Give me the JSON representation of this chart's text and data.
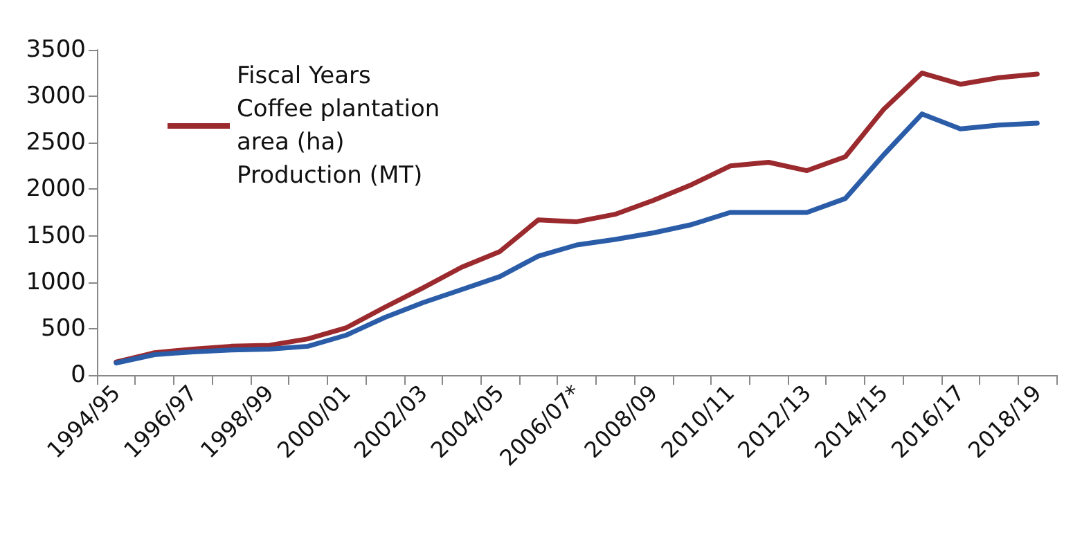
{
  "chart_data": {
    "type": "line",
    "categories": [
      "1994/95",
      null,
      "1996/97",
      null,
      "1998/99",
      null,
      "2000/01",
      null,
      "2002/03",
      null,
      "2004/05",
      null,
      "2006/07*",
      null,
      "2008/09",
      null,
      "2010/11",
      null,
      "2012/13",
      null,
      "2014/15",
      null,
      "2016/17",
      null,
      "2018/19"
    ],
    "series": [
      {
        "name": "Fiscal Years Coffee plantation area (ha) Production (MT)",
        "color": "#9b2a2e",
        "values": [
          140,
          240,
          280,
          310,
          320,
          390,
          510,
          730,
          940,
          1160,
          1330,
          1670,
          1650,
          1730,
          1880,
          2050,
          2250,
          2290,
          2200,
          2350,
          2860,
          3250,
          3130,
          3200,
          3240
        ]
      },
      {
        "color": "#2a5ca8",
        "values": [
          130,
          220,
          250,
          270,
          280,
          310,
          430,
          620,
          780,
          920,
          1060,
          1280,
          1400,
          1460,
          1530,
          1620,
          1750,
          1750,
          1750,
          1900,
          2370,
          2810,
          2650,
          2690,
          2710
        ]
      }
    ],
    "ylim": [
      0,
      3500
    ],
    "yticks": [
      0,
      500,
      1000,
      1500,
      2000,
      2500,
      3000,
      3500
    ],
    "grid": false,
    "legend": "top left",
    "marker": "none",
    "line_style": "solid"
  }
}
